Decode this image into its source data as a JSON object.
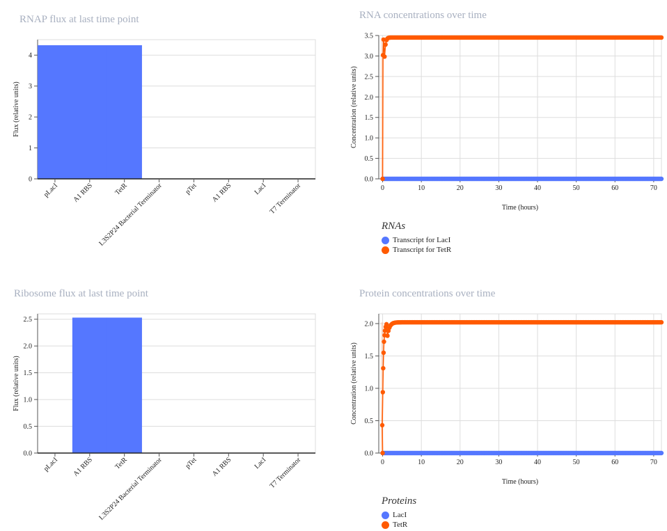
{
  "chart_data": [
    {
      "id": "rnap",
      "type": "bar",
      "title": "RNAP flux at last time point",
      "ylabel": "Flux (relative units)",
      "categories": [
        "pLacI",
        "A1 RBS",
        "TetR",
        "L3S2P24 Bacterial Terminator",
        "pTet",
        "A1 RBS",
        "LacI",
        "T7 Terminator"
      ],
      "values": [
        4.32,
        4.32,
        4.32,
        0,
        0,
        0,
        0,
        0
      ],
      "ylim": [
        0,
        4.5
      ],
      "yticks": [
        "0",
        "1",
        "2",
        "3",
        "4"
      ],
      "grid": true,
      "color": "#5577ff"
    },
    {
      "id": "ribosome",
      "type": "bar",
      "title": "Ribosome flux at last time point",
      "ylabel": "Flux (relative units)",
      "categories": [
        "pLacI",
        "A1 RBS",
        "TetR",
        "L3S2P24 Bacterial Terminator",
        "pTet",
        "A1 RBS",
        "LacI",
        "T7 Terminator"
      ],
      "values": [
        0,
        2.53,
        2.53,
        0,
        0,
        0,
        0,
        0
      ],
      "ylim": [
        0,
        2.6
      ],
      "yticks": [
        "0.0",
        "0.5",
        "1.0",
        "1.5",
        "2.0",
        "2.5"
      ],
      "grid": true,
      "color": "#5577ff"
    },
    {
      "id": "rna",
      "type": "scatter",
      "title": "RNA concentrations over time",
      "xlabel": "Time (hours)",
      "ylabel": "Concentration (relative units)",
      "xlim": [
        -1,
        72
      ],
      "ylim": [
        0,
        3.5
      ],
      "xticks": [
        "0",
        "10",
        "20",
        "30",
        "40",
        "50",
        "60",
        "70"
      ],
      "yticks": [
        "0.0",
        "0.5",
        "1.0",
        "1.5",
        "2.0",
        "2.5",
        "3.0",
        "3.5"
      ],
      "grid": true,
      "legend_title": "RNAs",
      "legend_position": "bottom-left",
      "series": [
        {
          "name": "Transcript for LacI",
          "color": "#5577ff",
          "mode": "constant",
          "y0": 0
        },
        {
          "name": "Transcript for TetR",
          "color": "#ff5a00",
          "mode": "rise",
          "start": 0,
          "plateau": 3.45,
          "tau": 0.25,
          "early_points": [
            [
              0,
              0
            ],
            [
              0.1,
              3.02
            ],
            [
              0.25,
              3.4
            ]
          ]
        }
      ]
    },
    {
      "id": "protein",
      "type": "scatter",
      "title": "Protein concentrations over time",
      "xlabel": "Time (hours)",
      "ylabel": "Concentration (relative units)",
      "xlim": [
        -1,
        72
      ],
      "ylim": [
        0,
        2.15
      ],
      "xticks": [
        "0",
        "10",
        "20",
        "30",
        "40",
        "50",
        "60",
        "70"
      ],
      "yticks": [
        "0.0",
        "0.5",
        "1.0",
        "1.5",
        "2.0"
      ],
      "grid": true,
      "legend_title": "Proteins",
      "legend_position": "bottom-left",
      "series": [
        {
          "name": "LacI",
          "color": "#5577ff",
          "mode": "constant",
          "y0": 0
        },
        {
          "name": "TetR",
          "color": "#ff5a00",
          "mode": "rise",
          "start": 0,
          "plateau": 2.02,
          "tau": 0.55,
          "early_points": [
            [
              0,
              0
            ],
            [
              -0.1,
              0.43
            ],
            [
              0.05,
              0.94
            ],
            [
              0.15,
              1.31
            ],
            [
              0.25,
              1.55
            ],
            [
              0.35,
              1.72
            ],
            [
              0.5,
              1.82
            ],
            [
              0.6,
              1.89
            ],
            [
              0.8,
              1.95
            ],
            [
              1.0,
              1.99
            ]
          ]
        }
      ]
    }
  ]
}
